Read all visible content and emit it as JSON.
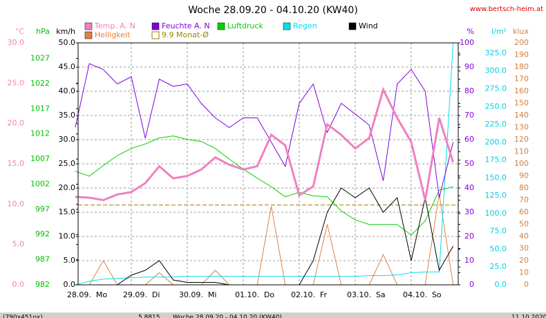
{
  "chart_data": {
    "type": "line",
    "title": "Woche 28.09.20 - 04.10.20 (KW40)",
    "source": "www.bertsch-heim.at",
    "xlim": [
      0.05,
      6.84
    ],
    "xticks": [
      {
        "value": 0,
        "label": "28.09.  Mo"
      },
      {
        "value": 1,
        "label": "29.09.  Di"
      },
      {
        "value": 2,
        "label": "30.09.  Mi"
      },
      {
        "value": 3,
        "label": "01.10.  Do"
      },
      {
        "value": 4,
        "label": "02.10.  Fr"
      },
      {
        "value": 5,
        "label": "03.10.  Sa"
      },
      {
        "value": 6,
        "label": "04.10.  So"
      }
    ],
    "grid": true,
    "axes": [
      {
        "label": "°C",
        "color": "#f080c0",
        "side": "left",
        "ylim": [
          0,
          30
        ],
        "yticks": [
          {
            "value": 0,
            "label": "0.0"
          },
          {
            "value": 5,
            "label": "5.0"
          },
          {
            "value": 10,
            "label": "10.0"
          },
          {
            "value": 15,
            "label": "15.0"
          },
          {
            "value": 20,
            "label": "20.0"
          },
          {
            "value": 25,
            "label": "25.0"
          },
          {
            "value": 30,
            "label": "30.0"
          }
        ]
      },
      {
        "label": "hPa",
        "color": "#00c000",
        "side": "left",
        "ylim": [
          982,
          1030.1
        ],
        "yticks": [
          982,
          987,
          992,
          997,
          1002,
          1007,
          1012,
          1017,
          1022,
          1027
        ]
      },
      {
        "label": "km/h",
        "color": "#000000",
        "side": "left",
        "ylim": [
          0,
          50
        ],
        "yticks": [
          {
            "value": 0,
            "label": "0.0"
          },
          {
            "value": 5,
            "label": "5.0"
          },
          {
            "value": 10,
            "label": "10.0"
          },
          {
            "value": 15,
            "label": "15.0"
          },
          {
            "value": 20,
            "label": "20.0"
          },
          {
            "value": 25,
            "label": "25.0"
          },
          {
            "value": 30,
            "label": "30.0"
          },
          {
            "value": 35,
            "label": "35.0"
          },
          {
            "value": 40,
            "label": "40.0"
          },
          {
            "value": 45,
            "label": "45.0"
          },
          {
            "value": 50,
            "label": "50.0"
          }
        ]
      },
      {
        "label": "%",
        "color": "#8000e0",
        "side": "right",
        "ylim": [
          0,
          100
        ],
        "yticks": [
          0,
          10,
          20,
          30,
          40,
          50,
          60,
          70,
          80,
          90,
          100
        ]
      },
      {
        "label": "l/m²",
        "color": "#00d0e0",
        "side": "right",
        "ylim": [
          0,
          339.5
        ],
        "yticks": [
          {
            "value": 0,
            "label": "0.0"
          },
          {
            "value": 25,
            "label": "25.0"
          },
          {
            "value": 50,
            "label": "50.0"
          },
          {
            "value": 75,
            "label": "75.0"
          },
          {
            "value": 100,
            "label": "100.0"
          },
          {
            "value": 125,
            "label": "125.0"
          },
          {
            "value": 150,
            "label": "150.0"
          },
          {
            "value": 175,
            "label": "175.0"
          },
          {
            "value": 200,
            "label": "200.0"
          },
          {
            "value": 225,
            "label": "225.0"
          },
          {
            "value": 250,
            "label": "250.0"
          },
          {
            "value": 275,
            "label": "275.0"
          },
          {
            "value": 300,
            "label": "300.0"
          },
          {
            "value": 325,
            "label": "325.0"
          }
        ]
      },
      {
        "label": "klux",
        "color": "#d08040",
        "side": "right",
        "ylim": [
          0,
          200
        ],
        "yticks": [
          0,
          10,
          20,
          30,
          40,
          50,
          60,
          70,
          80,
          90,
          100,
          110,
          120,
          130,
          140,
          150,
          160,
          170,
          180,
          190,
          200
        ]
      }
    ],
    "x": [
      0,
      0.25,
      0.5,
      0.75,
      1,
      1.25,
      1.5,
      1.75,
      2,
      2.25,
      2.5,
      2.75,
      3,
      3.25,
      3.5,
      3.75,
      4,
      4.25,
      4.5,
      4.75,
      5,
      5.25,
      5.5,
      5.75,
      6,
      6.25,
      6.5,
      6.75
    ],
    "series": [
      {
        "name": "Temp. A. N",
        "color": "#f080c0",
        "axis": 0,
        "width": 3,
        "values": [
          10.9,
          10.8,
          10.5,
          11.2,
          11.5,
          12.6,
          14.7,
          13.2,
          13.5,
          14.3,
          15.8,
          14.9,
          14.3,
          14.7,
          18.6,
          17.3,
          11.1,
          12.2,
          19.9,
          18.6,
          16.9,
          18.2,
          24.2,
          20.7,
          17.7,
          10.5,
          20.7,
          15.2
        ]
      },
      {
        "name": "Feuchte A. N",
        "color": "#8000e0",
        "axis": 3,
        "width": 1,
        "values": [
          65,
          91.4,
          89,
          83,
          86,
          60.6,
          85,
          82,
          83,
          75,
          69,
          65,
          69,
          69,
          59,
          49,
          75,
          83,
          63,
          75,
          70.6,
          66,
          43,
          83,
          89,
          80,
          36,
          59
        ]
      },
      {
        "name": "Luftdruck",
        "color": "#00d000",
        "axis": 1,
        "width": 1,
        "values": [
          1004.6,
          1003.6,
          1005.7,
          1007.7,
          1009.1,
          1010,
          1011.2,
          1011.6,
          1010.9,
          1010.5,
          1009.1,
          1007,
          1005,
          1003.2,
          1001.5,
          999.5,
          1000.4,
          999.7,
          999.5,
          996.7,
          994.9,
          994,
          994,
          994,
          991.9,
          994.7,
          1000.8,
          1001.5
        ]
      },
      {
        "name": "Regen",
        "color": "#00e0f0",
        "axis": 4,
        "width": 1,
        "values": [
          0,
          5,
          8,
          9,
          10,
          11,
          11,
          11,
          12,
          12,
          12,
          12,
          12,
          12,
          12,
          12,
          12,
          12,
          12,
          12,
          12,
          13,
          13,
          14,
          17,
          18,
          18,
          340
        ]
      },
      {
        "name": "Wind",
        "color": "#000000",
        "axis": 2,
        "width": 1,
        "values": [
          0,
          0,
          0,
          0,
          2,
          3,
          5,
          1,
          0.5,
          0.5,
          0.5,
          0,
          0,
          0,
          0,
          0,
          0,
          5,
          15,
          20,
          18,
          20,
          15,
          18,
          5,
          18,
          3,
          8
        ]
      },
      {
        "name": "Helligkeit",
        "color": "#e08040",
        "axis": 5,
        "width": 1,
        "values": [
          0,
          0,
          20,
          0,
          0,
          0,
          10,
          0,
          0,
          0,
          12,
          0,
          0,
          0,
          65,
          0,
          0,
          0,
          50,
          0,
          0,
          0,
          25,
          0,
          0,
          0,
          75,
          0
        ]
      }
    ],
    "reference": {
      "name": "9.9 Monat-Ø",
      "value": 9.9,
      "axis": 0,
      "color": "#a08000"
    },
    "status": [
      "(790x451px)",
      "5.8815",
      "Woche 28.09.20 - 04.10.20 (KW40)",
      "11.10.2020"
    ]
  }
}
